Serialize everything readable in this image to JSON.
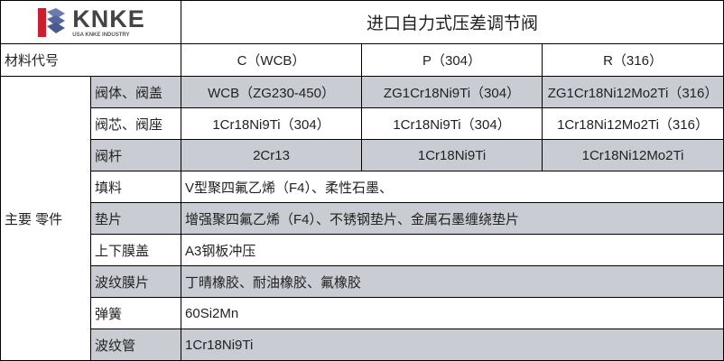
{
  "logo": {
    "brand": "KNKE",
    "tagline": "USA KNKE INDUSTRY",
    "colors": {
      "red": "#c8202f",
      "blue": "#4b5a8c"
    }
  },
  "title": "进口自力式压差调节阀",
  "material_code": {
    "label": "材料代号",
    "columns": [
      "C（WCB）",
      "P（304）",
      "R（316）"
    ]
  },
  "group_label": "主要 零件",
  "row_colors": {
    "shaded": "#c9ccd3",
    "plain": "#ffffff"
  },
  "parts": [
    {
      "name": "阀体、阀盖",
      "values": [
        "WCB（ZG230-450）",
        "ZG1Cr18Ni9Ti（304）",
        "ZG1Cr18Ni12Mo2Ti（316）"
      ],
      "shaded": true
    },
    {
      "name": "阀芯、阀座",
      "values": [
        "1Cr18Ni9Ti（304）",
        "1Cr18Ni9Ti（304）",
        "1Cr18Ni12Mo2Ti（316）"
      ],
      "shaded": false
    },
    {
      "name": "阀杆",
      "values": [
        "2Cr13",
        "1Cr18Ni9Ti",
        "1Cr18Ni12Mo2Ti"
      ],
      "shaded": true
    },
    {
      "name": "填料",
      "value": "V型聚四氟乙烯（F4）、柔性石墨、",
      "shaded": false
    },
    {
      "name": "垫片",
      "value": "增强聚四氟乙烯（F4）、不锈钢垫片、金属石墨缠绕垫片",
      "shaded": true
    },
    {
      "name": "上下膜盖",
      "value": "A3钢板冲压",
      "shaded": false
    },
    {
      "name": "波纹膜片",
      "value": "丁晴橡胶、耐油橡胶、氟橡胶",
      "shaded": true
    },
    {
      "name": "弹簧",
      "value": "60Si2Mn",
      "shaded": false
    },
    {
      "name": "波纹管",
      "value": "1Cr18Ni9Ti",
      "shaded": true
    }
  ]
}
